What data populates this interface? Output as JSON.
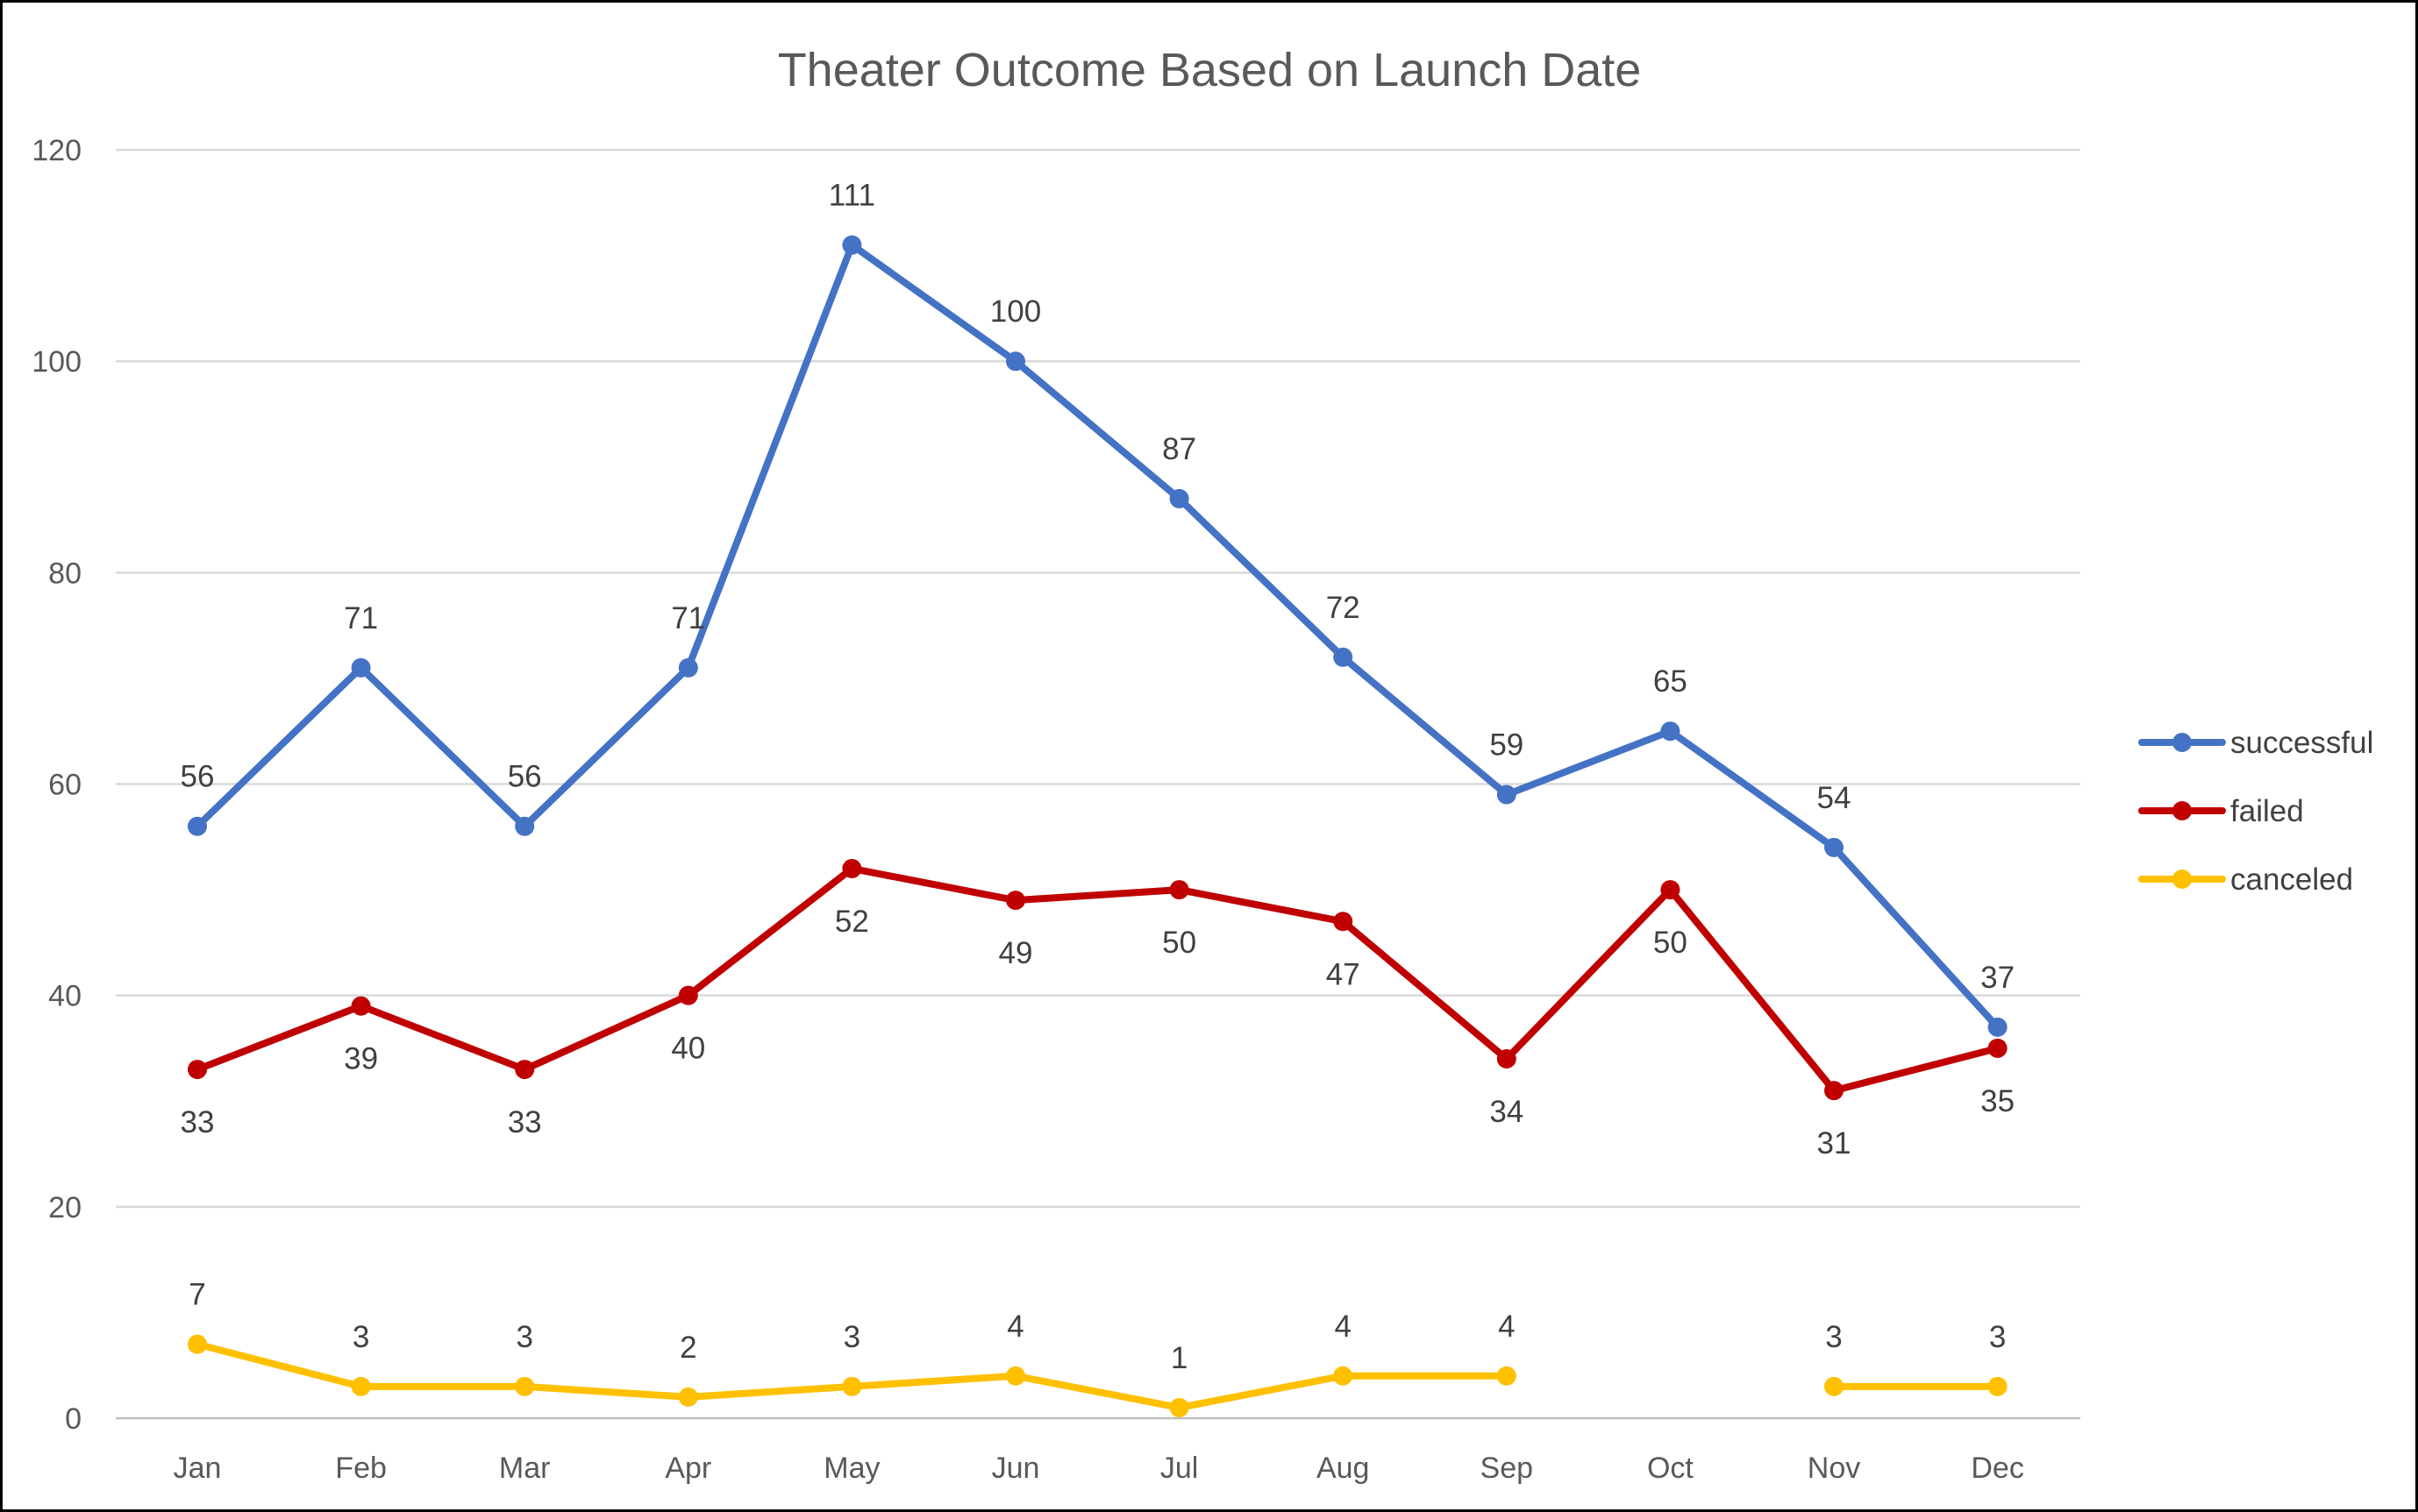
{
  "chart_data": {
    "type": "line",
    "title": "Theater Outcome Based on Launch Date",
    "xlabel": "",
    "ylabel": "",
    "categories": [
      "Jan",
      "Feb",
      "Mar",
      "Apr",
      "May",
      "Jun",
      "Jul",
      "Aug",
      "Sep",
      "Oct",
      "Nov",
      "Dec"
    ],
    "ylim": [
      0,
      120
    ],
    "yticks": [
      0,
      20,
      40,
      60,
      80,
      100,
      120
    ],
    "grid": true,
    "legend_position": "right",
    "series": [
      {
        "name": "successful",
        "color": "#4472C4",
        "values": [
          56,
          71,
          56,
          71,
          111,
          100,
          87,
          72,
          59,
          65,
          54,
          37
        ],
        "label_position": "above"
      },
      {
        "name": "failed",
        "color": "#C00000",
        "values": [
          33,
          39,
          33,
          40,
          52,
          49,
          50,
          47,
          34,
          50,
          31,
          35
        ],
        "label_position": "below"
      },
      {
        "name": "canceled",
        "color": "#FFC000",
        "values": [
          7,
          3,
          3,
          2,
          3,
          4,
          1,
          4,
          4,
          null,
          3,
          3
        ],
        "label_position": "above"
      }
    ]
  }
}
